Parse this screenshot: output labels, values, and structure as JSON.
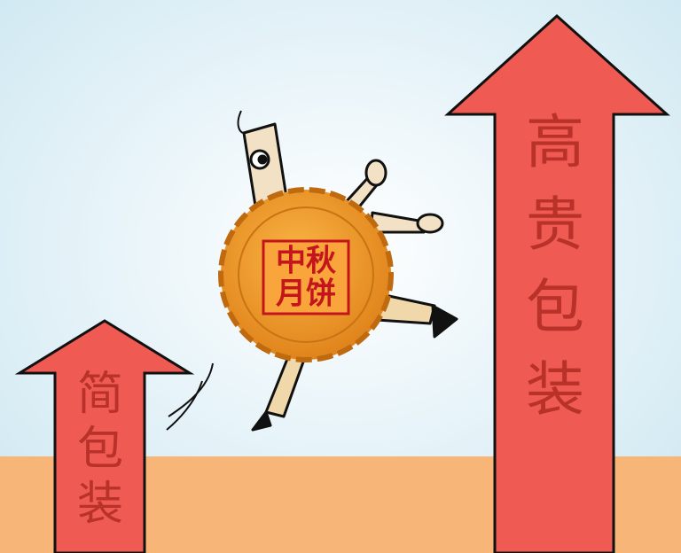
{
  "left_arrow": {
    "chars": [
      "简",
      "包",
      "装"
    ]
  },
  "right_arrow": {
    "chars": [
      "高",
      "贵",
      "包",
      "装"
    ]
  },
  "mooncake": {
    "lines": [
      "中秋",
      "月饼"
    ]
  }
}
